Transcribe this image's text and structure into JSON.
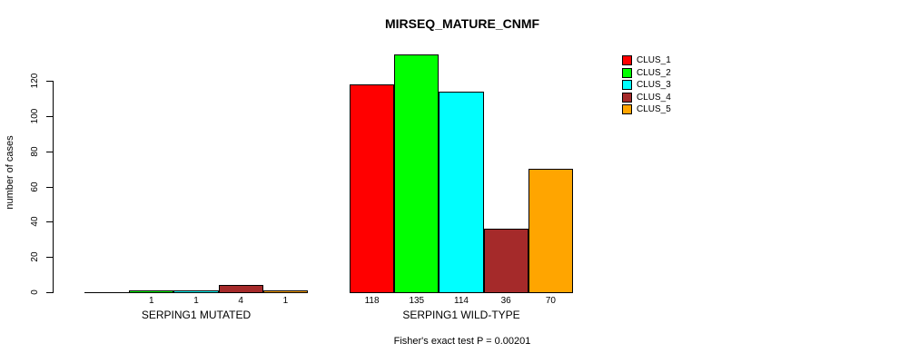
{
  "chart_data": {
    "type": "bar",
    "title": "MIRSEQ_MATURE_CNMF",
    "ylabel": "number of cases",
    "xlabel": "",
    "categories": [
      "SERPING1 MUTATED",
      "SERPING1 WILD-TYPE"
    ],
    "series": [
      {
        "name": "CLUS_1",
        "color": "#FF0000",
        "values": [
          0,
          118
        ]
      },
      {
        "name": "CLUS_2",
        "color": "#00FF00",
        "values": [
          1,
          135
        ]
      },
      {
        "name": "CLUS_3",
        "color": "#00FFFF",
        "values": [
          1,
          114
        ]
      },
      {
        "name": "CLUS_4",
        "color": "#A52A2A",
        "values": [
          4,
          36
        ]
      },
      {
        "name": "CLUS_5",
        "color": "#FFA500",
        "values": [
          1,
          70
        ]
      }
    ],
    "yticks": [
      0,
      20,
      40,
      60,
      80,
      100,
      120
    ],
    "ylim": [
      0,
      135
    ],
    "grid": false,
    "bar_value_labels_shown": true,
    "zero_values_unlabeled": true,
    "legend_position": "right",
    "footnote": "Fisher's exact test P = 0.00201"
  }
}
